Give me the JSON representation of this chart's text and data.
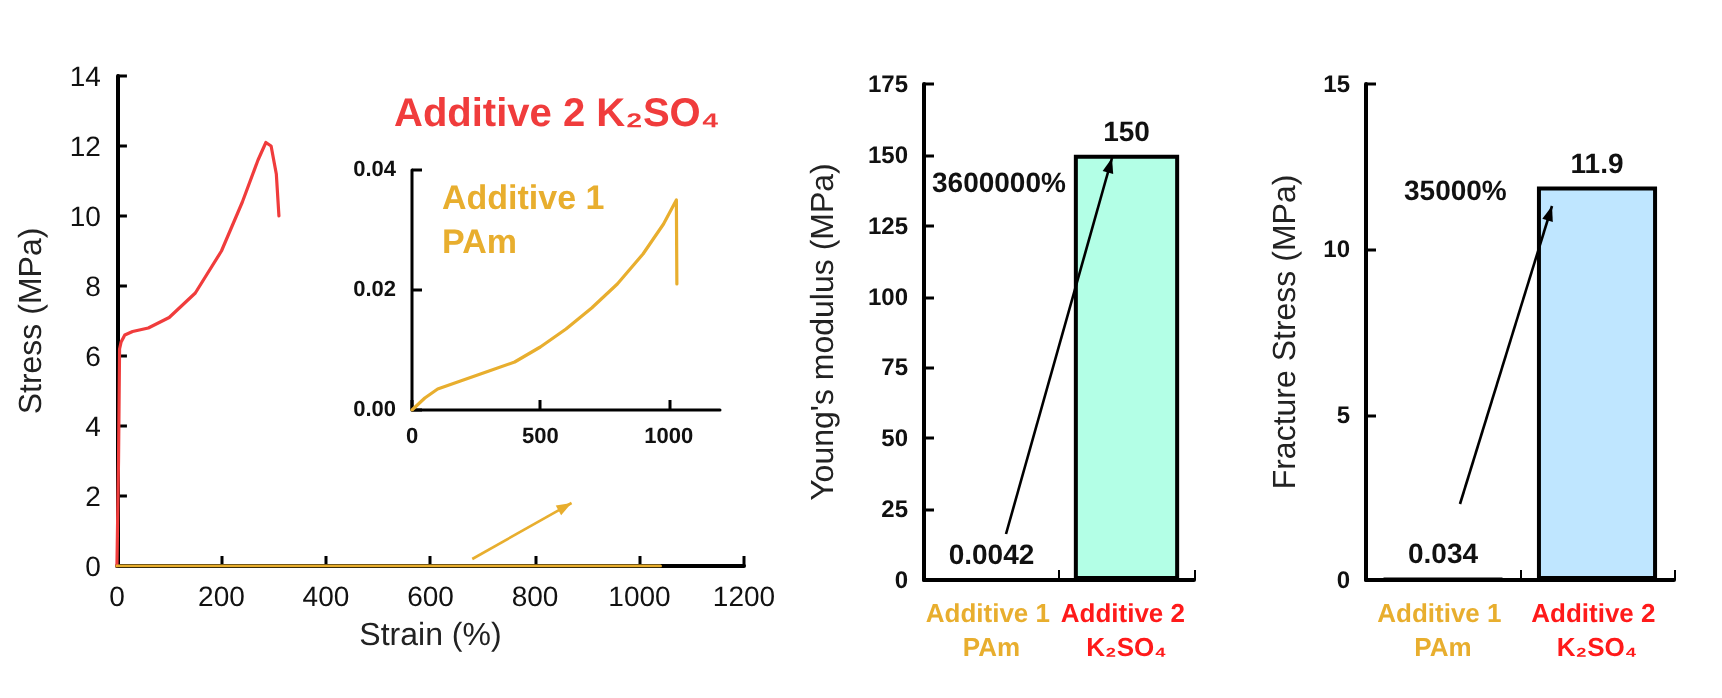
{
  "chart_data": [
    {
      "type": "line",
      "xlabel": "Strain (%)",
      "ylabel": "Stress (MPa)",
      "xlim": [
        0,
        1200
      ],
      "xticks": [
        0,
        200,
        400,
        600,
        800,
        1000,
        1200
      ],
      "ylim": [
        0,
        14
      ],
      "yticks": [
        0,
        2,
        4,
        6,
        8,
        10,
        12,
        14
      ],
      "grid": false,
      "legend": false,
      "marker": "none",
      "line_style": "solid",
      "series": [
        {
          "name": "Additive 2 K₂SO₄",
          "color": "#f03c3c",
          "x": [
            0,
            3,
            5,
            8,
            15,
            30,
            60,
            100,
            150,
            200,
            240,
            270,
            285,
            295,
            305,
            310
          ],
          "values": [
            0,
            3,
            6.2,
            6.4,
            6.6,
            6.7,
            6.8,
            7.1,
            7.8,
            9.0,
            10.4,
            11.6,
            12.1,
            12.0,
            11.2,
            10.0
          ]
        },
        {
          "color": "#e8ae2e",
          "x": [
            0,
            1040
          ],
          "values": [
            0,
            0
          ]
        }
      ]
    },
    {
      "type": "line",
      "xlim": [
        0,
        1200
      ],
      "xticks": [
        0,
        500,
        1000
      ],
      "ylim": [
        0,
        0.04
      ],
      "yticks": [
        {
          "value": 0,
          "label": "0.00"
        },
        {
          "value": 0.02,
          "label": "0.02"
        },
        {
          "value": 0.04,
          "label": "0.04"
        }
      ],
      "grid": false,
      "legend": false,
      "marker": "none",
      "line_style": "solid",
      "series": [
        {
          "name": "Additive 1 PAm",
          "color": "#e8ae2e",
          "x": [
            0,
            50,
            100,
            200,
            300,
            400,
            500,
            600,
            700,
            800,
            900,
            980,
            1030,
            1032
          ],
          "values": [
            0,
            0.002,
            0.0035,
            0.005,
            0.0065,
            0.008,
            0.0105,
            0.0135,
            0.017,
            0.021,
            0.026,
            0.031,
            0.035,
            0.021
          ]
        }
      ]
    },
    {
      "type": "bar",
      "ylabel": "Young's modulus (MPa)",
      "categories": [
        "Additive 1 PAm",
        "Additive 2 K₂SO₄"
      ],
      "values": [
        0.0042,
        150
      ],
      "colors": [
        "#000000",
        "#b3ffe6"
      ],
      "ylim": [
        0,
        175
      ],
      "yticks": [
        0,
        25,
        50,
        75,
        100,
        125,
        150,
        175
      ],
      "data_labels": true,
      "grid": false,
      "annotations": [
        "3600000%"
      ]
    },
    {
      "type": "bar",
      "ylabel": "Fracture Stress (MPa)",
      "categories": [
        "Additive 1 PAm",
        "Additive 2 K₂SO₄"
      ],
      "values": [
        0.034,
        11.9
      ],
      "colors": [
        "#000000",
        "#bfe6ff"
      ],
      "ylim": [
        0,
        15
      ],
      "yticks": [
        0,
        5,
        10,
        15
      ],
      "data_labels": true,
      "grid": false,
      "annotations": [
        "35000%"
      ]
    }
  ]
}
